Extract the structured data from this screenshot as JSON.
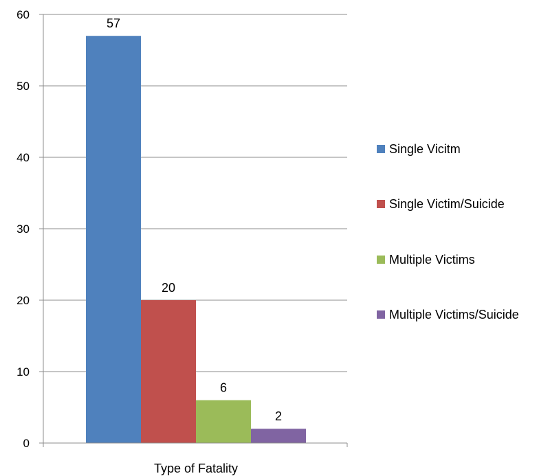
{
  "chart_data": {
    "type": "bar",
    "xlabel": "Type of Fatality",
    "ylabel": "",
    "title": "",
    "ylim": [
      0,
      60
    ],
    "yticks": [
      0,
      10,
      20,
      30,
      40,
      50,
      60
    ],
    "grid": true,
    "legend_position": "right",
    "series": [
      {
        "name": "Single Vicitm",
        "value": 57,
        "color": "#4f81bd"
      },
      {
        "name": "Single Victim/Suicide",
        "value": 20,
        "color": "#c0504d"
      },
      {
        "name": "Multiple Victims",
        "value": 6,
        "color": "#9bbb59"
      },
      {
        "name": "Multiple Victims/Suicide",
        "value": 2,
        "color": "#8064a2"
      }
    ]
  }
}
